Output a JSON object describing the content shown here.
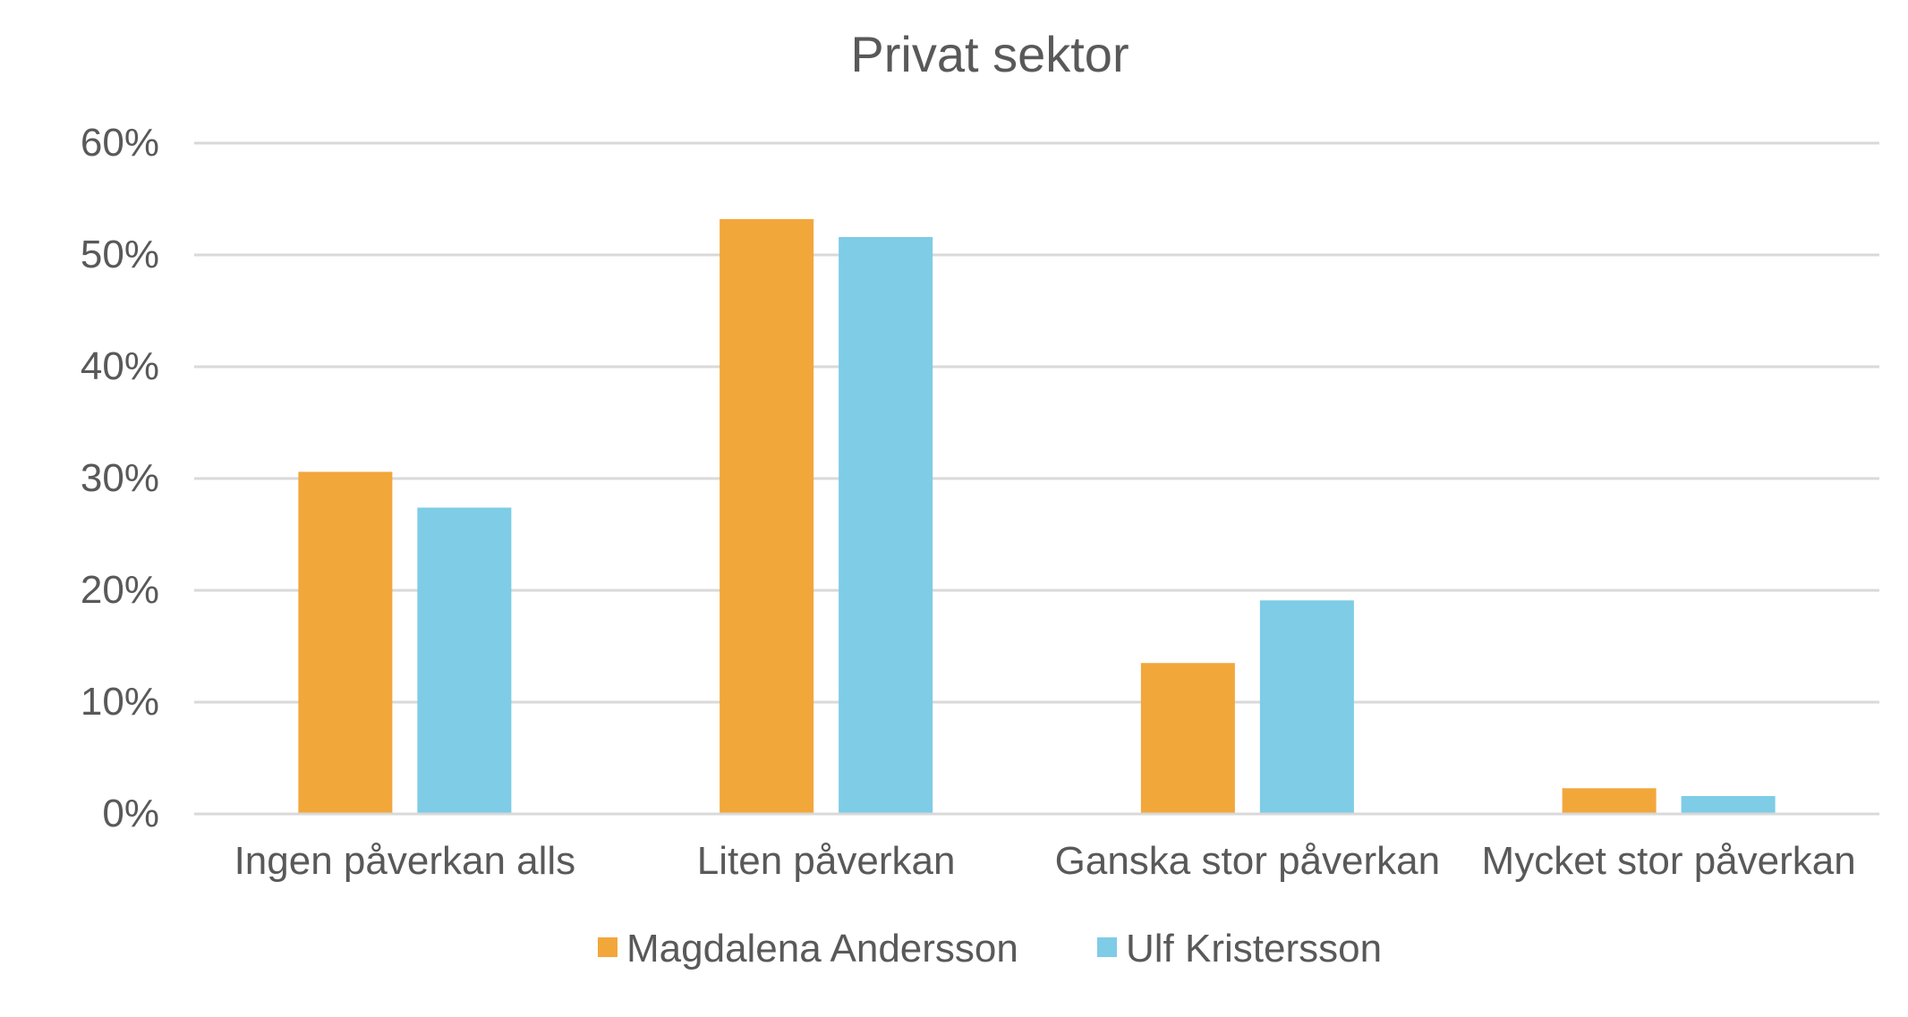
{
  "chart_data": {
    "type": "bar",
    "title": "Privat sektor",
    "xlabel": "",
    "ylabel": "",
    "categories": [
      "Ingen påverkan alls",
      "Liten påverkan",
      "Ganska stor påverkan",
      "Mycket stor påverkan"
    ],
    "series": [
      {
        "name": "Magdalena Andersson",
        "color": "#F2A73B",
        "values": [
          30.6,
          53.2,
          13.5,
          2.3
        ]
      },
      {
        "name": "Ulf Kristersson",
        "color": "#7ECCE6",
        "values": [
          27.4,
          51.6,
          19.1,
          1.6
        ]
      }
    ],
    "ylim": [
      0,
      60
    ],
    "yticks": [
      0,
      10,
      20,
      30,
      40,
      50,
      60
    ],
    "ytick_labels": [
      "0%",
      "10%",
      "20%",
      "30%",
      "40%",
      "50%",
      "60%"
    ],
    "grid": true,
    "gridline_color": "#D9D9D9",
    "legend_position": "bottom"
  }
}
